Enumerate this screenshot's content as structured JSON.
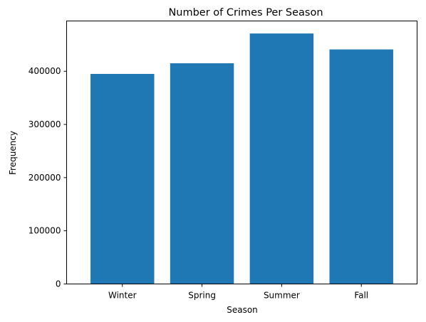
{
  "chart_data": {
    "type": "bar",
    "title": "Number of Crimes Per Season",
    "xlabel": "Season",
    "ylabel": "Frequency",
    "categories": [
      "Winter",
      "Spring",
      "Summer",
      "Fall"
    ],
    "values": [
      395000,
      415000,
      471000,
      441000
    ],
    "ylim": [
      0,
      494550
    ],
    "yticks": [
      0,
      100000,
      200000,
      300000,
      400000
    ],
    "ytick_labels": [
      "0",
      "100000",
      "200000",
      "300000",
      "400000"
    ],
    "bar_color": "#1f77b4",
    "grid": false,
    "legend": "none"
  }
}
